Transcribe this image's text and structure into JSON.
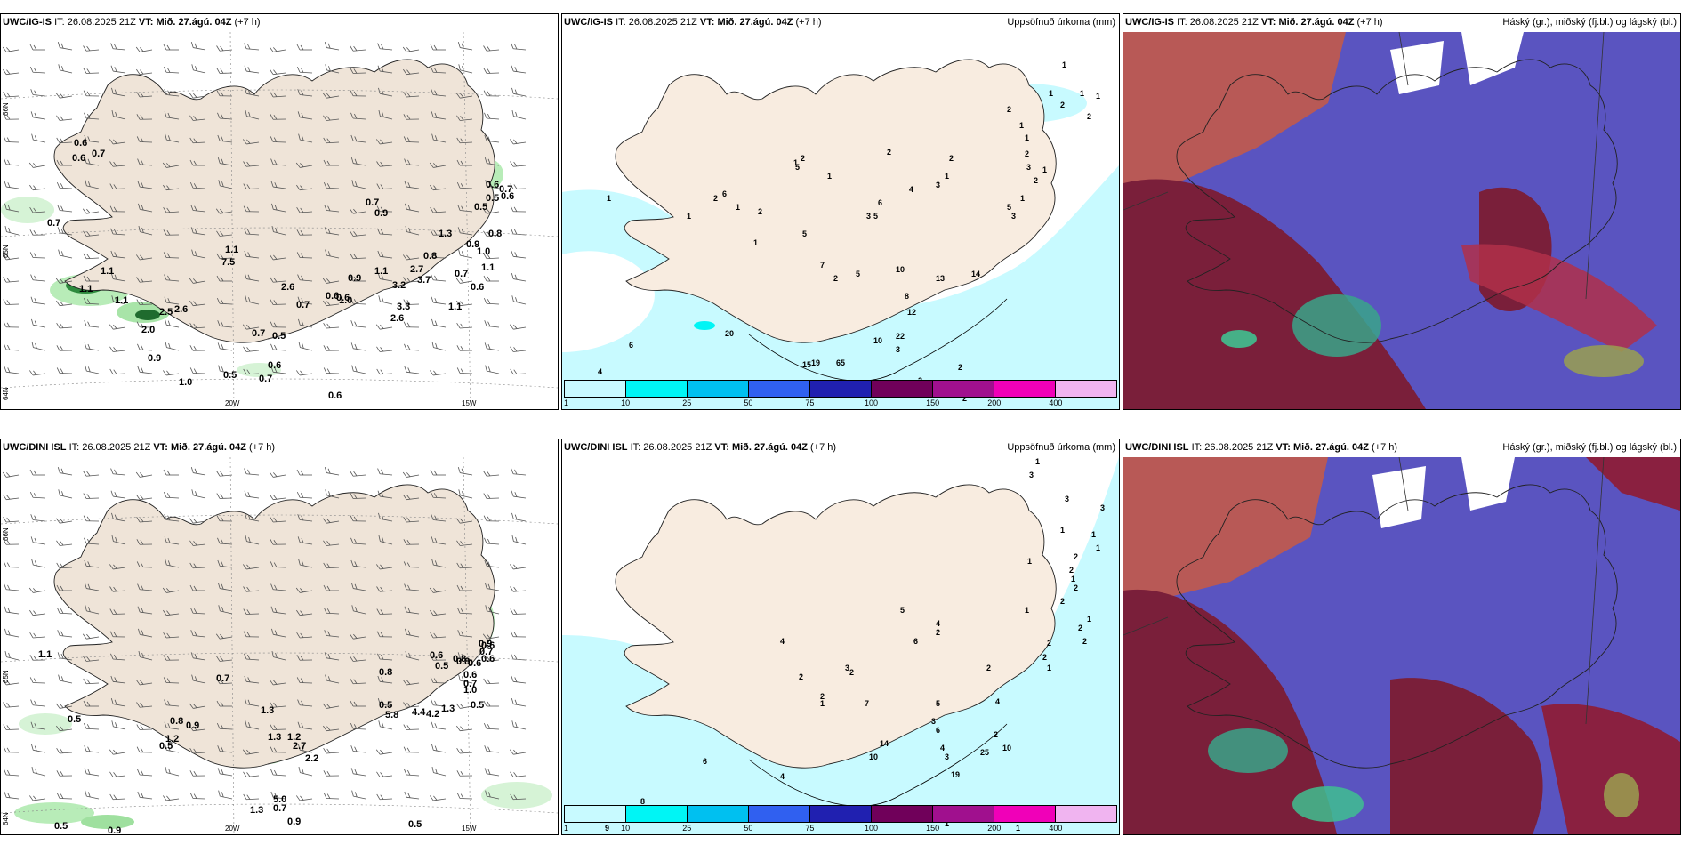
{
  "rows": [
    {
      "model": "UWC/IG-IS",
      "it_label": "IT:",
      "it": "26.08.2025 21Z",
      "vt_label": "VT:",
      "vt": "Mið. 27.ágú. 04Z",
      "lead": "(+7 h)",
      "wind_labels": [
        "0.6",
        "0.6",
        "0.7",
        "0.7",
        "1.1",
        "1.1",
        "1.1",
        "2.0",
        "2.5",
        "2.6",
        "0.9",
        "1.0",
        "0.5",
        "0.7",
        "0.6",
        "1.1",
        "7.5",
        "2.6",
        "0.7",
        "0.6",
        "1.0",
        "0.6",
        "0.7",
        "0.5",
        "0.6",
        "0.7",
        "0.9",
        "0.9",
        "1.1",
        "3.2",
        "2.7",
        "3.7",
        "3.3",
        "2.6",
        "0.8",
        "1.3",
        "0.7",
        "1.1",
        "0.6",
        "1.1",
        "0.9",
        "0.5",
        "1.0",
        "0.8",
        "0.6",
        "0.5",
        "0.7",
        "0.6"
      ],
      "axis": {
        "lat_top": "66N",
        "lat_mid": "65N",
        "lat_bot": "64N",
        "lon_left": "20W",
        "lon_right": "15W"
      },
      "precip_title": "Uppsöfnuð úrkoma (mm)",
      "precip_labels": [
        "1",
        "1",
        "1",
        "1",
        "2",
        "2",
        "2",
        "1",
        "1",
        "2",
        "3",
        "2",
        "1",
        "1",
        "3",
        "5",
        "2",
        "1",
        "3",
        "4",
        "6",
        "5",
        "3",
        "2",
        "1",
        "1",
        "5",
        "2",
        "6",
        "1",
        "1",
        "2",
        "1",
        "2",
        "5",
        "1",
        "7",
        "2",
        "5",
        "10",
        "13",
        "14",
        "8",
        "12",
        "22",
        "10",
        "19",
        "65",
        "15",
        "20",
        "3",
        "6",
        "4",
        "3",
        "2",
        "2"
      ],
      "cloud_title": "Háský (gr.), miðský (fj.bl.) og lágský (bl.)"
    },
    {
      "model": "UWC/DINI ISL",
      "it_label": "IT:",
      "it": "26.08.2025 21Z",
      "vt_label": "VT:",
      "vt": "Mið. 27.ágú. 04Z",
      "lead": "(+7 h)",
      "wind_labels": [
        "1.1",
        "0.5",
        "0.8",
        "0.9",
        "1.2",
        "0.5",
        "0.7",
        "1.3",
        "1.3",
        "1.2",
        "2.7",
        "2.2",
        "5.0",
        "0.7",
        "1.3",
        "0.9",
        "0.5",
        "0.9",
        "0.5",
        "0.8",
        "0.5",
        "5.8",
        "4.4",
        "4.2",
        "1.3",
        "0.6",
        "0.5",
        "0.8",
        "0.8",
        "0.7",
        "0.6",
        "0.6",
        "1.0",
        "0.9",
        "0.7",
        "0.6",
        "0.6",
        "0.5"
      ],
      "axis": {
        "lat_top": "66N",
        "lat_mid": "65N",
        "lat_bot": "64N",
        "lon_left": "20W",
        "lon_right": "15W"
      },
      "precip_title": "Uppsöfnuð úrkoma (mm)",
      "precip_labels": [
        "1",
        "3",
        "3",
        "3",
        "1",
        "1",
        "1",
        "1",
        "2",
        "2",
        "1",
        "2",
        "2",
        "1",
        "1",
        "2",
        "2",
        "2",
        "2",
        "1",
        "4",
        "5",
        "4",
        "2",
        "6",
        "3",
        "2",
        "2",
        "2",
        "1",
        "7",
        "5",
        "2",
        "3",
        "6",
        "10",
        "14",
        "4",
        "19",
        "25",
        "10",
        "2",
        "4",
        "3",
        "2",
        "1",
        "6",
        "4",
        "9",
        "8",
        "1"
      ],
      "cloud_title": "Háský (gr.), miðský (fj.bl.) og lágský (bl.)"
    }
  ],
  "colorbar": {
    "ticks": [
      "1",
      "10",
      "25",
      "50",
      "75",
      "100",
      "150",
      "200",
      "400"
    ],
    "colors": [
      "#c8faff",
      "#00f5f5",
      "#00c0f0",
      "#3060f0",
      "#2020b0",
      "#70005a",
      "#a0108e",
      "#f000b8",
      "#f0b4f0"
    ]
  },
  "icons": {
    "wind_barb": "wind-barb-icon",
    "iceland": "iceland-outline"
  }
}
